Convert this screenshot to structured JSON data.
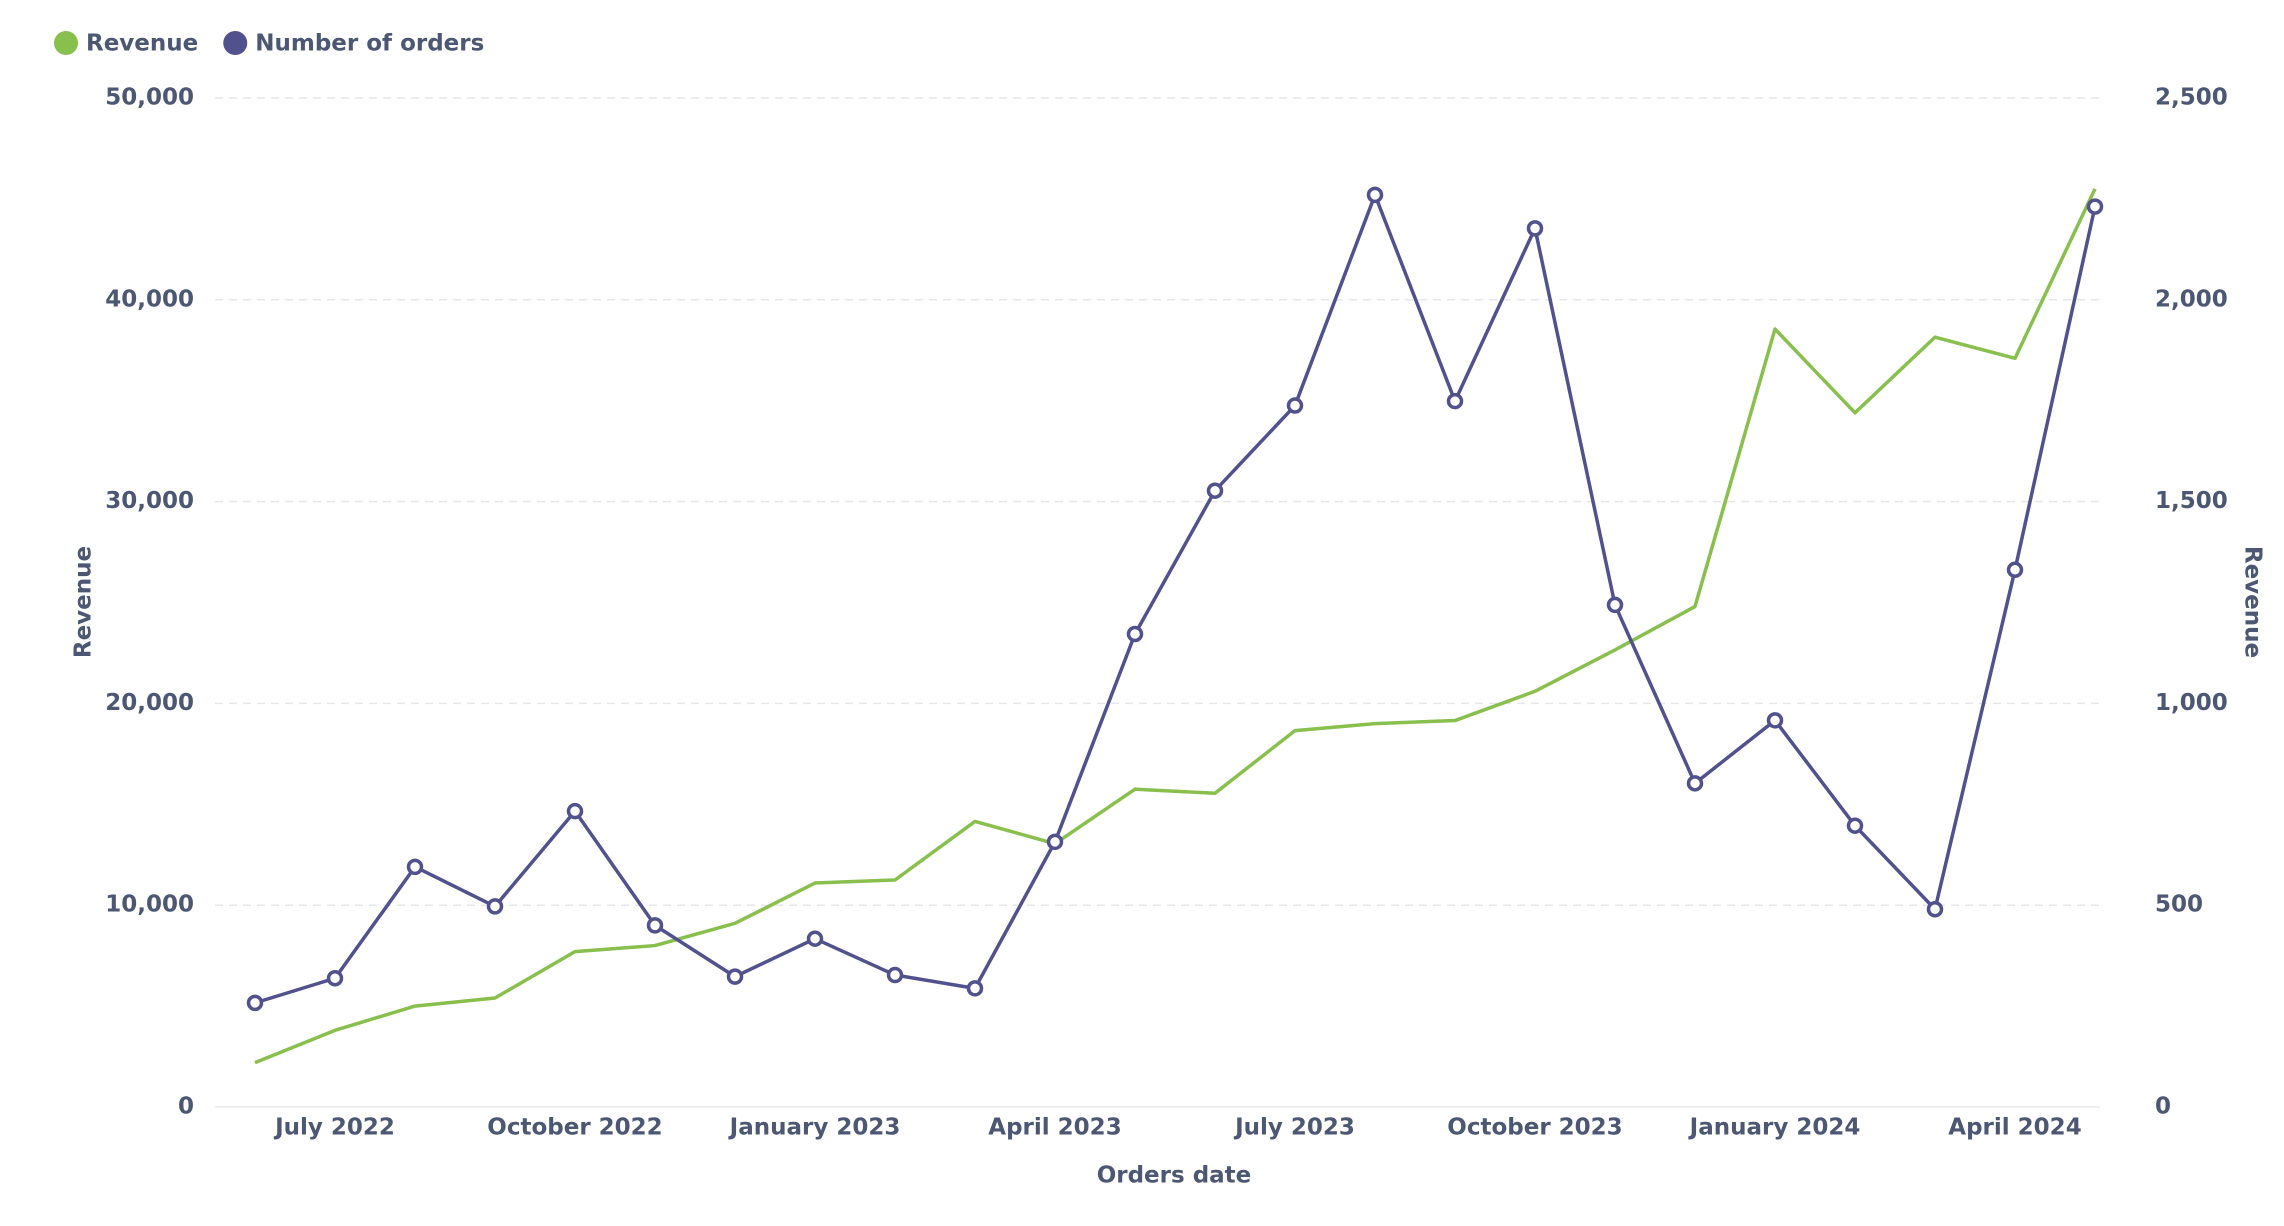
{
  "chart_data": {
    "type": "line",
    "xlabel": "Orders date",
    "ylabel": "Revenue",
    "y2label": "Revenue",
    "x": [
      "2022-06",
      "2022-07",
      "2022-08",
      "2022-09",
      "2022-10",
      "2022-11",
      "2022-12",
      "2023-01",
      "2023-02",
      "2023-03",
      "2023-04",
      "2023-05",
      "2023-06",
      "2023-07",
      "2023-08",
      "2023-09",
      "2023-10",
      "2023-11",
      "2023-12",
      "2024-01",
      "2024-02",
      "2024-03",
      "2024-04",
      "2024-05"
    ],
    "series": [
      {
        "name": "Revenue",
        "color": "#88bf4d",
        "values": [
          2200,
          3800,
          5000,
          5400,
          7700,
          8000,
          9100,
          11100,
          11250,
          14150,
          13050,
          15750,
          15550,
          18650,
          19000,
          19150,
          20600,
          22650,
          24800,
          38550,
          34400,
          38150,
          37100,
          45500
        ]
      },
      {
        "name": "Number of orders",
        "color": "#51528d",
        "axis": "y2",
        "values": [
          258,
          319,
          595,
          497,
          733,
          450,
          323,
          417,
          327,
          294,
          657,
          1172,
          1527,
          1738,
          2260,
          1749,
          2177,
          1244,
          802,
          958,
          697,
          490,
          1331,
          2231
        ]
      }
    ],
    "ylim": [
      0,
      50000
    ],
    "yticks": [
      0,
      {
        "value": 10000,
        "label": "10,000"
      },
      {
        "value": 20000,
        "label": "20,000"
      },
      {
        "value": 30000,
        "label": "30,000"
      },
      {
        "value": 40000,
        "label": "40,000"
      },
      {
        "value": 50000,
        "label": "50,000"
      }
    ],
    "y2lim": [
      0,
      2500
    ],
    "y2ticks": [
      0,
      500,
      {
        "value": 1000,
        "label": "1,000"
      },
      {
        "value": 1500,
        "label": "1,500"
      },
      {
        "value": 2000,
        "label": "2,000"
      },
      {
        "value": 2500,
        "label": "2,500"
      }
    ],
    "xticks": [
      {
        "value": "2022-07",
        "label": "July 2022"
      },
      {
        "value": "2022-10",
        "label": "October 2022"
      },
      {
        "value": "2023-01",
        "label": "January 2023"
      },
      {
        "value": "2023-04",
        "label": "April 2023"
      },
      {
        "value": "2023-07",
        "label": "July 2023"
      },
      {
        "value": "2023-10",
        "label": "October 2023"
      },
      {
        "value": "2024-01",
        "label": "January 2024"
      },
      {
        "value": "2024-04",
        "label": "April 2024"
      }
    ],
    "grid": true,
    "legend": "top-left"
  }
}
